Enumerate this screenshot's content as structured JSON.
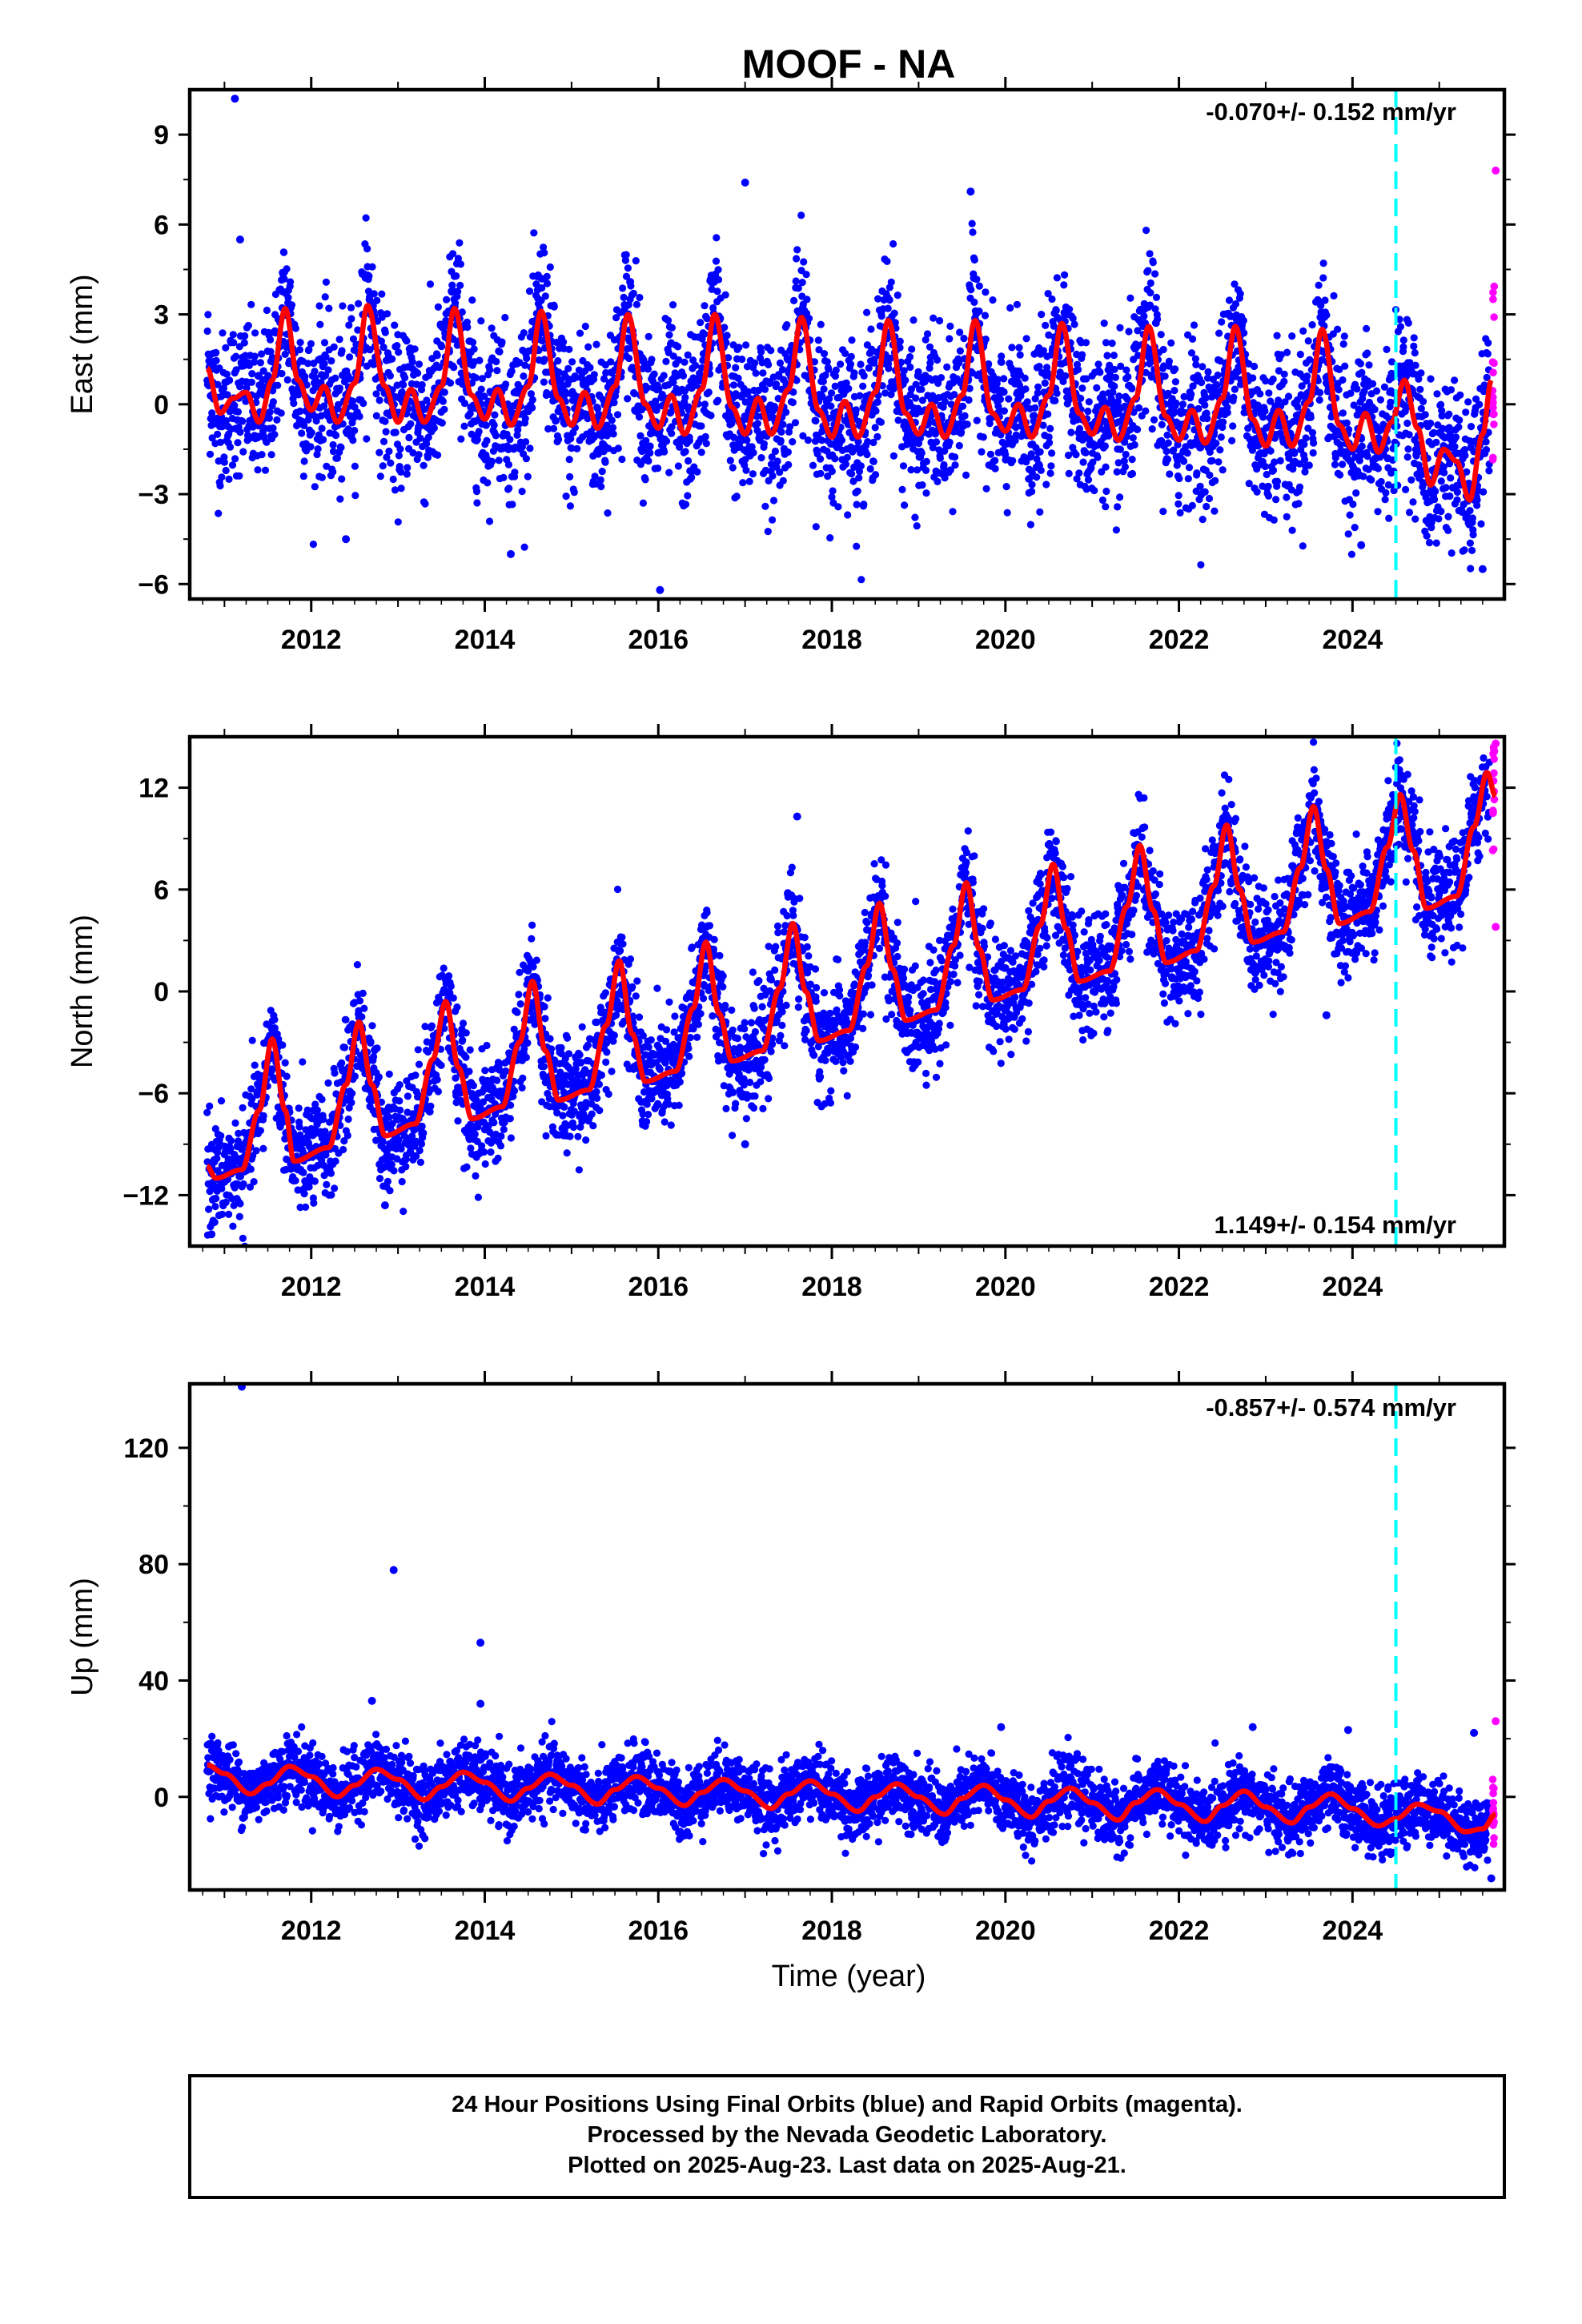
{
  "title": "MOOF - NA",
  "xlabel": "Time (year)",
  "caption": {
    "line1": "24 Hour Positions Using Final Orbits (blue) and Rapid Orbits (magenta).",
    "line2": "Processed by the Nevada Geodetic Laboratory.",
    "line3": "Plotted on 2025-Aug-23. Last data on 2025-Aug-21."
  },
  "colors": {
    "final_orbits": "#0000ff",
    "rapid_orbits": "#ff00ff",
    "model_fit": "#ff0000",
    "event_line": "#00ffff",
    "frame": "#000000"
  },
  "chart_data": [
    {
      "type": "scatter",
      "component": "east",
      "ylabel": "East (mm)",
      "rate_label": "-0.070+/- 0.152 mm/yr",
      "rate_mm_per_yr": -0.07,
      "rate_sigma_mm_per_yr": 0.152,
      "xlim": [
        2010.6,
        2025.75
      ],
      "ylim": [
        -6.5,
        10.5
      ],
      "yticks": [
        9,
        6,
        3,
        0,
        -3,
        -6
      ],
      "xticks": [
        2012,
        2014,
        2016,
        2018,
        2020,
        2022,
        2024
      ],
      "event_line_x": 2024.5,
      "series": [
        {
          "name": "Final Orbits",
          "color": "#0000ff"
        },
        {
          "name": "Rapid Orbits",
          "color": "#ff00ff"
        }
      ],
      "model_fit_points": [
        [
          2010.8,
          1.2
        ],
        [
          2010.95,
          -0.3
        ],
        [
          2011.1,
          0.2
        ],
        [
          2011.25,
          0.4
        ],
        [
          2011.4,
          -0.6
        ],
        [
          2011.55,
          0.8
        ],
        [
          2011.7,
          3.2
        ],
        [
          2011.85,
          0.8
        ],
        [
          2012.0,
          -0.2
        ],
        [
          2012.15,
          0.6
        ],
        [
          2012.3,
          -0.6
        ],
        [
          2012.5,
          0.7
        ],
        [
          2012.65,
          3.3
        ],
        [
          2012.85,
          0.6
        ],
        [
          2013.0,
          -0.6
        ],
        [
          2013.15,
          0.5
        ],
        [
          2013.3,
          -0.6
        ],
        [
          2013.5,
          0.6
        ],
        [
          2013.65,
          3.2
        ],
        [
          2013.85,
          0.3
        ],
        [
          2014.0,
          -0.5
        ],
        [
          2014.15,
          0.5
        ],
        [
          2014.3,
          -0.7
        ],
        [
          2014.5,
          0.6
        ],
        [
          2014.65,
          3.1
        ],
        [
          2014.85,
          0.2
        ],
        [
          2015.0,
          -0.7
        ],
        [
          2015.15,
          0.4
        ],
        [
          2015.3,
          -0.8
        ],
        [
          2015.5,
          0.6
        ],
        [
          2015.65,
          3.0
        ],
        [
          2015.85,
          0.0
        ],
        [
          2016.0,
          -0.8
        ],
        [
          2016.15,
          0.3
        ],
        [
          2016.3,
          -1.0
        ],
        [
          2016.5,
          0.5
        ],
        [
          2016.65,
          3.0
        ],
        [
          2016.85,
          -0.1
        ],
        [
          2017.0,
          -1.0
        ],
        [
          2017.15,
          0.2
        ],
        [
          2017.3,
          -1.0
        ],
        [
          2017.5,
          0.5
        ],
        [
          2017.65,
          2.9
        ],
        [
          2017.85,
          -0.2
        ],
        [
          2018.0,
          -1.1
        ],
        [
          2018.15,
          0.1
        ],
        [
          2018.3,
          -1.1
        ],
        [
          2018.5,
          0.4
        ],
        [
          2018.65,
          2.8
        ],
        [
          2018.85,
          -0.3
        ],
        [
          2019.0,
          -1.0
        ],
        [
          2019.15,
          0.0
        ],
        [
          2019.3,
          -1.1
        ],
        [
          2019.5,
          0.3
        ],
        [
          2019.65,
          2.8
        ],
        [
          2019.85,
          -0.3
        ],
        [
          2020.0,
          -0.9
        ],
        [
          2020.15,
          0.0
        ],
        [
          2020.3,
          -1.1
        ],
        [
          2020.5,
          0.3
        ],
        [
          2020.65,
          2.7
        ],
        [
          2020.85,
          -0.3
        ],
        [
          2021.0,
          -1.0
        ],
        [
          2021.15,
          -0.1
        ],
        [
          2021.3,
          -1.2
        ],
        [
          2021.5,
          0.2
        ],
        [
          2021.65,
          2.6
        ],
        [
          2021.85,
          -0.4
        ],
        [
          2022.0,
          -1.2
        ],
        [
          2022.15,
          -0.2
        ],
        [
          2022.3,
          -1.3
        ],
        [
          2022.5,
          0.2
        ],
        [
          2022.65,
          2.6
        ],
        [
          2022.85,
          -0.5
        ],
        [
          2023.0,
          -1.4
        ],
        [
          2023.15,
          -0.2
        ],
        [
          2023.3,
          -1.4
        ],
        [
          2023.5,
          0.1
        ],
        [
          2023.65,
          2.5
        ],
        [
          2023.85,
          -0.7
        ],
        [
          2024.0,
          -1.5
        ],
        [
          2024.15,
          -0.3
        ],
        [
          2024.3,
          -1.6
        ],
        [
          2024.45,
          -0.6
        ],
        [
          2024.6,
          0.8
        ],
        [
          2024.75,
          -0.8
        ],
        [
          2024.9,
          -2.7
        ],
        [
          2025.05,
          -1.5
        ],
        [
          2025.2,
          -1.9
        ],
        [
          2025.35,
          -3.2
        ],
        [
          2025.5,
          -1.0
        ],
        [
          2025.6,
          0.8
        ]
      ],
      "outliers": [
        [
          2011.12,
          10.2
        ],
        [
          2011.18,
          5.5
        ],
        [
          2012.4,
          -4.5
        ],
        [
          2014.3,
          -5.0
        ],
        [
          2016.02,
          -6.2
        ],
        [
          2017.0,
          7.4
        ],
        [
          2019.6,
          7.1
        ],
        [
          2024.1,
          -4.7
        ],
        [
          2025.5,
          -5.5
        ],
        [
          2025.65,
          7.8
        ]
      ]
    },
    {
      "type": "scatter",
      "component": "north",
      "ylabel": "North (mm)",
      "rate_label": "1.149+/- 0.154 mm/yr",
      "rate_mm_per_yr": 1.149,
      "rate_sigma_mm_per_yr": 0.154,
      "xlim": [
        2010.6,
        2025.75
      ],
      "ylim": [
        -15,
        15
      ],
      "yticks": [
        12,
        6,
        0,
        -6,
        -12
      ],
      "xticks": [
        2012,
        2014,
        2016,
        2018,
        2020,
        2022,
        2024
      ],
      "event_line_x": 2024.5,
      "series": [
        {
          "name": "Final Orbits",
          "color": "#0000ff"
        },
        {
          "name": "Rapid Orbits",
          "color": "#ff00ff"
        }
      ],
      "model_fit_points": [
        [
          2010.8,
          -10.3
        ],
        [
          2010.9,
          -11.0
        ],
        [
          2011.2,
          -10.5
        ],
        [
          2011.4,
          -7.0
        ],
        [
          2011.55,
          -2.8
        ],
        [
          2011.7,
          -7.0
        ],
        [
          2011.8,
          -10.0
        ],
        [
          2012.2,
          -9.2
        ],
        [
          2012.4,
          -5.5
        ],
        [
          2012.55,
          -1.8
        ],
        [
          2012.7,
          -5.5
        ],
        [
          2012.85,
          -8.5
        ],
        [
          2013.2,
          -7.8
        ],
        [
          2013.4,
          -4.0
        ],
        [
          2013.55,
          -0.6
        ],
        [
          2013.7,
          -4.5
        ],
        [
          2013.85,
          -7.5
        ],
        [
          2014.2,
          -6.8
        ],
        [
          2014.4,
          -3.0
        ],
        [
          2014.55,
          0.6
        ],
        [
          2014.7,
          -3.5
        ],
        [
          2014.85,
          -6.4
        ],
        [
          2015.2,
          -5.8
        ],
        [
          2015.4,
          -2.0
        ],
        [
          2015.55,
          1.8
        ],
        [
          2015.7,
          -2.5
        ],
        [
          2015.85,
          -5.3
        ],
        [
          2016.2,
          -4.7
        ],
        [
          2016.4,
          -1.0
        ],
        [
          2016.55,
          2.9
        ],
        [
          2016.7,
          -1.3
        ],
        [
          2016.85,
          -4.1
        ],
        [
          2017.2,
          -3.5
        ],
        [
          2017.4,
          0.2
        ],
        [
          2017.55,
          4.0
        ],
        [
          2017.7,
          0.0
        ],
        [
          2017.85,
          -2.9
        ],
        [
          2018.2,
          -2.3
        ],
        [
          2018.4,
          1.5
        ],
        [
          2018.55,
          5.2
        ],
        [
          2018.7,
          1.3
        ],
        [
          2018.85,
          -1.7
        ],
        [
          2019.2,
          -1.1
        ],
        [
          2019.4,
          2.7
        ],
        [
          2019.55,
          6.4
        ],
        [
          2019.7,
          2.5
        ],
        [
          2019.85,
          -0.5
        ],
        [
          2020.2,
          0.1
        ],
        [
          2020.4,
          3.9
        ],
        [
          2020.55,
          7.5
        ],
        [
          2020.7,
          3.7
        ],
        [
          2020.85,
          0.6
        ],
        [
          2021.2,
          1.2
        ],
        [
          2021.4,
          5.0
        ],
        [
          2021.55,
          8.6
        ],
        [
          2021.7,
          4.8
        ],
        [
          2021.85,
          1.7
        ],
        [
          2022.2,
          2.4
        ],
        [
          2022.4,
          6.2
        ],
        [
          2022.55,
          9.8
        ],
        [
          2022.7,
          6.0
        ],
        [
          2022.85,
          2.9
        ],
        [
          2023.2,
          3.5
        ],
        [
          2023.4,
          7.3
        ],
        [
          2023.55,
          10.9
        ],
        [
          2023.7,
          7.2
        ],
        [
          2023.85,
          4.0
        ],
        [
          2024.2,
          4.7
        ],
        [
          2024.4,
          8.5
        ],
        [
          2024.55,
          11.6
        ],
        [
          2024.7,
          8.3
        ],
        [
          2024.85,
          4.9
        ],
        [
          2025.2,
          5.6
        ],
        [
          2025.4,
          9.7
        ],
        [
          2025.55,
          12.9
        ],
        [
          2025.65,
          11.5
        ]
      ],
      "outliers": [
        [
          2010.85,
          -14.3
        ],
        [
          2012.85,
          -12.6
        ],
        [
          2017.0,
          -9.0
        ],
        [
          2017.6,
          10.3
        ],
        [
          2023.7,
          -1.4
        ],
        [
          2025.65,
          14.6
        ],
        [
          2025.65,
          3.8
        ]
      ]
    },
    {
      "type": "scatter",
      "component": "up",
      "ylabel": "Up (mm)",
      "rate_label": "-0.857+/- 0.574 mm/yr",
      "rate_mm_per_yr": -0.857,
      "rate_sigma_mm_per_yr": 0.574,
      "xlim": [
        2010.6,
        2025.75
      ],
      "ylim": [
        -32,
        142
      ],
      "yticks": [
        120,
        80,
        40,
        0
      ],
      "xticks": [
        2012,
        2014,
        2016,
        2018,
        2020,
        2022,
        2024
      ],
      "event_line_x": 2024.5,
      "series": [
        {
          "name": "Final Orbits",
          "color": "#0000ff"
        },
        {
          "name": "Rapid Orbits",
          "color": "#ff00ff"
        }
      ],
      "model_fit_points": [
        [
          2010.8,
          11.0
        ],
        [
          2011.0,
          8.0
        ],
        [
          2011.3,
          1.0
        ],
        [
          2011.5,
          4.5
        ],
        [
          2011.75,
          10.5
        ],
        [
          2012.0,
          7.0
        ],
        [
          2012.3,
          0.0
        ],
        [
          2012.5,
          4.0
        ],
        [
          2012.75,
          9.5
        ],
        [
          2013.0,
          6.0
        ],
        [
          2013.3,
          -1.0
        ],
        [
          2013.5,
          3.5
        ],
        [
          2013.75,
          8.5
        ],
        [
          2014.0,
          5.0
        ],
        [
          2014.3,
          -1.5
        ],
        [
          2014.5,
          3.0
        ],
        [
          2014.75,
          7.8
        ],
        [
          2015.0,
          4.0
        ],
        [
          2015.3,
          -2.5
        ],
        [
          2015.5,
          2.5
        ],
        [
          2015.75,
          7.0
        ],
        [
          2016.0,
          3.0
        ],
        [
          2016.3,
          -3.0
        ],
        [
          2016.5,
          1.5
        ],
        [
          2016.75,
          6.0
        ],
        [
          2017.0,
          2.0
        ],
        [
          2017.3,
          -4.0
        ],
        [
          2017.5,
          1.0
        ],
        [
          2017.75,
          5.5
        ],
        [
          2018.0,
          1.0
        ],
        [
          2018.3,
          -5.0
        ],
        [
          2018.5,
          0.0
        ],
        [
          2018.75,
          4.5
        ],
        [
          2019.0,
          0.0
        ],
        [
          2019.3,
          -6.0
        ],
        [
          2019.5,
          -0.5
        ],
        [
          2019.75,
          4.0
        ],
        [
          2020.0,
          -1.0
        ],
        [
          2020.3,
          -7.0
        ],
        [
          2020.5,
          -1.5
        ],
        [
          2020.75,
          3.0
        ],
        [
          2021.0,
          -2.0
        ],
        [
          2021.3,
          -8.0
        ],
        [
          2021.5,
          -2.0
        ],
        [
          2021.75,
          2.5
        ],
        [
          2022.0,
          -2.5
        ],
        [
          2022.3,
          -8.5
        ],
        [
          2022.5,
          -3.0
        ],
        [
          2022.75,
          2.0
        ],
        [
          2023.0,
          -3.5
        ],
        [
          2023.3,
          -9.0
        ],
        [
          2023.5,
          -3.5
        ],
        [
          2023.75,
          1.0
        ],
        [
          2024.0,
          -4.0
        ],
        [
          2024.3,
          -10.0
        ],
        [
          2024.5,
          -7.5
        ],
        [
          2024.75,
          -2.5
        ],
        [
          2025.0,
          -5.0
        ],
        [
          2025.3,
          -12.0
        ],
        [
          2025.5,
          -11.0
        ],
        [
          2025.65,
          -6.0
        ]
      ],
      "outliers": [
        [
          2011.2,
          141.0
        ],
        [
          2012.95,
          78.0
        ],
        [
          2013.95,
          53.0
        ],
        [
          2013.95,
          32.0
        ],
        [
          2012.7,
          33.0
        ],
        [
          2019.95,
          24.0
        ],
        [
          2022.85,
          24.0
        ],
        [
          2023.95,
          23.0
        ],
        [
          2025.4,
          22.0
        ],
        [
          2025.6,
          -28.0
        ],
        [
          2025.65,
          26.0
        ]
      ]
    }
  ]
}
